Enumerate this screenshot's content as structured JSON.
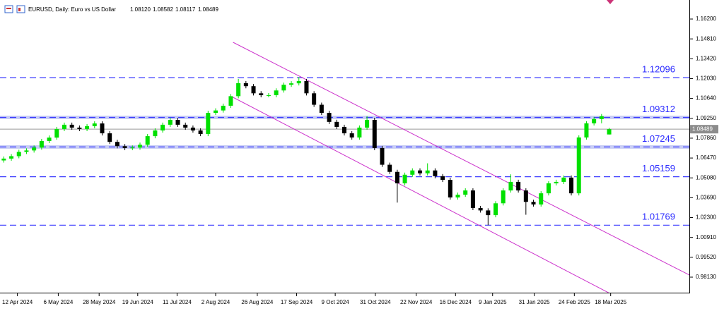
{
  "header": {
    "text": "EURUSD, Daily: Euro vs US Dollar",
    "ohlc": [
      "1.08120",
      "1.08582",
      "1.08117",
      "1.08489"
    ]
  },
  "chart_data": {
    "type": "candlestick",
    "xlim": [
      -0.5,
      90.6
    ],
    "ylim": [
      0.97044,
      1.17533
    ],
    "bull_color": "#00e000",
    "bear_color": "#000000",
    "xticks": [
      {
        "value": 1.8,
        "label": "12 Apr 2024"
      },
      {
        "value": 7.2,
        "label": "6 May 2024"
      },
      {
        "value": 12.6,
        "label": "28 May 2024"
      },
      {
        "value": 17.7,
        "label": "19 Jun 2024"
      },
      {
        "value": 22.9,
        "label": "11 Jul 2024"
      },
      {
        "value": 28.0,
        "label": "2 Aug 2024"
      },
      {
        "value": 33.5,
        "label": "26 Aug 2024"
      },
      {
        "value": 38.7,
        "label": "17 Sep 2024"
      },
      {
        "value": 43.8,
        "label": "9 Oct 2024"
      },
      {
        "value": 49.1,
        "label": "31 Oct 2024"
      },
      {
        "value": 54.5,
        "label": "22 Nov 2024"
      },
      {
        "value": 59.7,
        "label": "16 Dec 2024"
      },
      {
        "value": 64.6,
        "label": "9 Jan 2025"
      },
      {
        "value": 70.1,
        "label": "31 Jan 2025"
      },
      {
        "value": 75.4,
        "label": "24 Feb 2025"
      },
      {
        "value": 80.2,
        "label": "18 Mar 2025"
      }
    ],
    "yticks": [
      {
        "value": 1.162,
        "label": "1.16200"
      },
      {
        "value": 1.1481,
        "label": "1.14810"
      },
      {
        "value": 1.1342,
        "label": "1.13420"
      },
      {
        "value": 1.1203,
        "label": "1.12030"
      },
      {
        "value": 1.1064,
        "label": "1.10640"
      },
      {
        "value": 1.0925,
        "label": "1.09250"
      },
      {
        "value": 1.0786,
        "label": "1.07860"
      },
      {
        "value": 1.0647,
        "label": "1.06470"
      },
      {
        "value": 1.0508,
        "label": "1.05080"
      },
      {
        "value": 1.0369,
        "label": "1.03690"
      },
      {
        "value": 1.023,
        "label": "1.02300"
      },
      {
        "value": 1.0091,
        "label": "1.00910"
      },
      {
        "value": 0.9952,
        "label": "0.99520"
      },
      {
        "value": 0.9813,
        "label": "0.98130"
      }
    ],
    "open": [
      1.063,
      1.0643,
      1.066,
      1.069,
      1.07,
      1.072,
      1.0766,
      1.079,
      1.085,
      1.088,
      1.086,
      1.085,
      1.087,
      1.0889,
      1.082,
      1.076,
      1.073,
      1.0717,
      1.072,
      1.074,
      1.08,
      1.084,
      1.088,
      1.0914,
      1.088,
      1.086,
      1.084,
      1.0815,
      1.0963,
      1.098,
      1.1013,
      1.108,
      1.1171,
      1.115,
      1.11,
      1.1087,
      1.1087,
      1.112,
      1.116,
      1.117,
      1.1186,
      1.11,
      1.102,
      1.0963,
      1.09,
      1.0865,
      1.082,
      1.0791,
      1.086,
      1.0914,
      1.0717,
      1.06,
      1.055,
      1.047,
      1.053,
      1.056,
      1.054,
      1.056,
      1.052,
      1.0494,
      1.0371,
      1.039,
      1.042,
      1.0297,
      1.028,
      1.0247,
      1.033,
      1.042,
      1.048,
      1.042,
      1.034,
      1.0322,
      1.04,
      1.047,
      1.048,
      1.051,
      1.04,
      1.0791,
      1.089,
      1.092,
      1.0812
    ],
    "high": [
      1.0658,
      1.0675,
      1.0705,
      1.0715,
      1.0735,
      1.0781,
      1.0805,
      1.0865,
      1.0895,
      1.0895,
      1.0875,
      1.0885,
      1.0904,
      1.0904,
      1.0835,
      1.0775,
      1.0745,
      1.0735,
      1.0755,
      1.0815,
      1.0855,
      1.0895,
      1.0929,
      1.0929,
      1.0895,
      1.0875,
      1.0855,
      1.0978,
      1.0995,
      1.1028,
      1.1095,
      1.1201,
      1.1186,
      1.1165,
      1.1115,
      1.1102,
      1.1135,
      1.1175,
      1.1185,
      1.1214,
      1.1201,
      1.1115,
      1.1035,
      1.0978,
      1.0915,
      1.088,
      1.0835,
      1.0875,
      1.094,
      1.0929,
      1.0732,
      1.0615,
      1.0565,
      1.0545,
      1.0575,
      1.0575,
      1.061,
      1.0575,
      1.0535,
      1.0509,
      1.0405,
      1.0435,
      1.0435,
      1.0312,
      1.0295,
      1.0345,
      1.0435,
      1.0533,
      1.0495,
      1.0435,
      1.0355,
      1.0415,
      1.0485,
      1.0495,
      1.0525,
      1.0525,
      1.0806,
      1.0905,
      1.0935,
      1.0955,
      1.08582
    ],
    "low": [
      1.0615,
      1.0628,
      1.0645,
      1.0675,
      1.0685,
      1.0705,
      1.0751,
      1.0775,
      1.0835,
      1.0845,
      1.0835,
      1.0835,
      1.0855,
      1.0805,
      1.0745,
      1.0715,
      1.0702,
      1.0702,
      1.0705,
      1.0725,
      1.0785,
      1.0825,
      1.0865,
      1.0865,
      1.0845,
      1.0825,
      1.08,
      1.08,
      1.0948,
      1.0965,
      1.0998,
      1.1065,
      1.1135,
      1.1085,
      1.1072,
      1.1072,
      1.1072,
      1.1105,
      1.1145,
      1.1155,
      1.1085,
      1.1005,
      1.0948,
      1.0885,
      1.085,
      1.0805,
      1.0776,
      1.0776,
      1.0845,
      1.0702,
      1.0585,
      1.0535,
      1.0335,
      1.0455,
      1.0515,
      1.0525,
      1.0525,
      1.0505,
      1.0479,
      1.0356,
      1.0356,
      1.0375,
      1.0282,
      1.0265,
      1.0177,
      1.0232,
      1.0315,
      1.0405,
      1.0405,
      1.025,
      1.0307,
      1.0307,
      1.0385,
      1.0455,
      1.0465,
      1.0385,
      1.0385,
      1.0776,
      1.0875,
      1.089,
      1.08117
    ],
    "close": [
      1.0643,
      1.066,
      1.069,
      1.07,
      1.072,
      1.0766,
      1.079,
      1.085,
      1.088,
      1.086,
      1.085,
      1.087,
      1.0889,
      1.082,
      1.076,
      1.073,
      1.0717,
      1.072,
      1.074,
      1.08,
      1.084,
      1.088,
      1.0914,
      1.088,
      1.086,
      1.084,
      1.0815,
      1.0963,
      1.098,
      1.1013,
      1.108,
      1.1171,
      1.115,
      1.11,
      1.1087,
      1.1087,
      1.112,
      1.116,
      1.117,
      1.1186,
      1.11,
      1.102,
      1.0963,
      1.09,
      1.0865,
      1.082,
      1.0791,
      1.086,
      1.0914,
      1.0717,
      1.06,
      1.055,
      1.047,
      1.053,
      1.056,
      1.054,
      1.056,
      1.052,
      1.0494,
      1.0371,
      1.039,
      1.042,
      1.0297,
      1.028,
      1.0247,
      1.033,
      1.042,
      1.048,
      1.042,
      1.034,
      1.0322,
      1.04,
      1.047,
      1.048,
      1.051,
      1.04,
      1.0791,
      1.089,
      1.092,
      1.0939,
      1.08489
    ],
    "levels": [
      {
        "value": 1.12096,
        "label": "1.12096",
        "highlight": false
      },
      {
        "value": 1.09312,
        "label": "1.09312",
        "highlight": true
      },
      {
        "value": 1.07245,
        "label": "1.07245",
        "highlight": true
      },
      {
        "value": 1.05159,
        "label": "1.05159",
        "highlight": false
      },
      {
        "value": 1.01769,
        "label": "1.01769",
        "highlight": false
      }
    ],
    "level_color": "#3a3aff",
    "price_line": {
      "value": 1.08489,
      "label": "1.08489"
    },
    "trendlines": [
      {
        "x": [
          30.3,
          90.6
        ],
        "y": [
          1.14571,
          0.98279
        ]
      },
      {
        "x": [
          30.3,
          80.8
        ],
        "y": [
          1.1072,
          0.96797
        ]
      }
    ],
    "trend_color": "#cc33cc"
  }
}
